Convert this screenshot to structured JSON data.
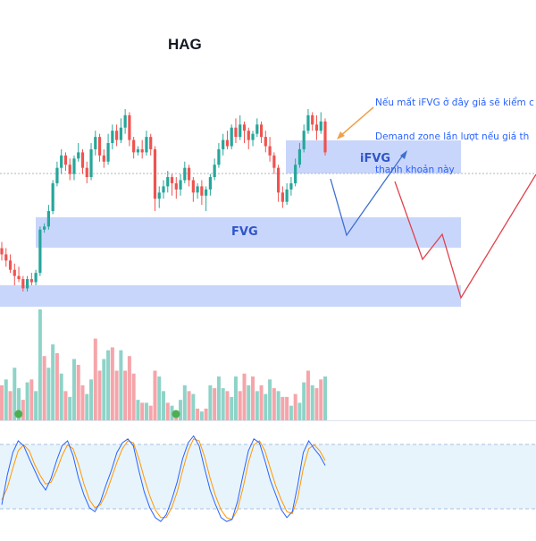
{
  "ticker": "HAG",
  "annotation": {
    "lines": [
      "Nếu mất iFVG ở đây giá sẽ kiểm c",
      "Demand zone lần lượt nếu giá th",
      "thanh khoản này"
    ]
  },
  "zones": [
    {
      "name": "iFVG",
      "label": "iFVG"
    },
    {
      "name": "FVG",
      "label": "FVG"
    },
    {
      "name": "demand-zone",
      "label": ""
    }
  ],
  "colors": {
    "up": "#26a69a",
    "down": "#ef5350",
    "vol_up": "#8fd3c8",
    "vol_down": "#f5a5aa",
    "zone": "#c9d6fb",
    "blue_path": "#3f6fcf",
    "red_path": "#e0424b",
    "oscillator_bg": "#e8f4fb",
    "osc_k": "#2962ff",
    "osc_d": "#ff9800",
    "annotation": "#2962ff",
    "arrow": "#f0a04b"
  },
  "chart_data": {
    "type": "candlestick",
    "title": "HAG",
    "price_scale_units": "relative (no axis printed)",
    "candles": [
      [
        40,
        38,
        42,
        36
      ],
      [
        38,
        36,
        40,
        34
      ],
      [
        36,
        33,
        38,
        32
      ],
      [
        33,
        31,
        35,
        28
      ],
      [
        31,
        30,
        34,
        29
      ],
      [
        30,
        27,
        31,
        26
      ],
      [
        27,
        30,
        31,
        26
      ],
      [
        30,
        29,
        32,
        28
      ],
      [
        29,
        32,
        33,
        28
      ],
      [
        32,
        46,
        47,
        31
      ],
      [
        46,
        47,
        48,
        45
      ],
      [
        47,
        52,
        54,
        46
      ],
      [
        52,
        61,
        62,
        51
      ],
      [
        61,
        66,
        68,
        60
      ],
      [
        66,
        70,
        72,
        64
      ],
      [
        70,
        67,
        71,
        65
      ],
      [
        67,
        64,
        69,
        62
      ],
      [
        64,
        69,
        70,
        62
      ],
      [
        69,
        71,
        74,
        68
      ],
      [
        71,
        66,
        72,
        64
      ],
      [
        66,
        63,
        68,
        61
      ],
      [
        63,
        72,
        74,
        62
      ],
      [
        72,
        76,
        78,
        70
      ],
      [
        76,
        70,
        77,
        68
      ],
      [
        70,
        68,
        72,
        66
      ],
      [
        68,
        74,
        77,
        67
      ],
      [
        74,
        78,
        80,
        72
      ],
      [
        78,
        75,
        80,
        73
      ],
      [
        75,
        79,
        82,
        74
      ],
      [
        79,
        83,
        85,
        77
      ],
      [
        83,
        75,
        84,
        73
      ],
      [
        75,
        71,
        76,
        69
      ],
      [
        71,
        72,
        73,
        70
      ],
      [
        72,
        71,
        75,
        69
      ],
      [
        71,
        76,
        78,
        70
      ],
      [
        76,
        72,
        77,
        70
      ],
      [
        72,
        56,
        73,
        52
      ],
      [
        56,
        58,
        60,
        53
      ],
      [
        58,
        60,
        62,
        56
      ],
      [
        60,
        63,
        65,
        58
      ],
      [
        63,
        61,
        64,
        57
      ],
      [
        61,
        59,
        63,
        56
      ],
      [
        59,
        62,
        64,
        57
      ],
      [
        62,
        66,
        68,
        61
      ],
      [
        66,
        62,
        67,
        60
      ],
      [
        62,
        58,
        63,
        55
      ],
      [
        58,
        60,
        61,
        56
      ],
      [
        60,
        57,
        62,
        54
      ],
      [
        57,
        59,
        60,
        52
      ],
      [
        59,
        63,
        64,
        57
      ],
      [
        63,
        67,
        69,
        62
      ],
      [
        67,
        72,
        74,
        66
      ],
      [
        72,
        75,
        77,
        70
      ],
      [
        75,
        73,
        78,
        72
      ],
      [
        73,
        79,
        80,
        72
      ],
      [
        79,
        76,
        82,
        74
      ],
      [
        76,
        80,
        83,
        75
      ],
      [
        80,
        78,
        81,
        74
      ],
      [
        78,
        75,
        79,
        72
      ],
      [
        75,
        77,
        78,
        73
      ],
      [
        77,
        80,
        82,
        76
      ],
      [
        80,
        76,
        81,
        74
      ],
      [
        76,
        73,
        78,
        71
      ],
      [
        73,
        70,
        76,
        68
      ],
      [
        70,
        66,
        71,
        64
      ],
      [
        66,
        58,
        67,
        55
      ],
      [
        58,
        55,
        60,
        53
      ],
      [
        55,
        59,
        61,
        54
      ],
      [
        59,
        61,
        63,
        57
      ],
      [
        61,
        67,
        69,
        60
      ],
      [
        67,
        72,
        74,
        66
      ],
      [
        72,
        78,
        80,
        71
      ],
      [
        78,
        83,
        85,
        77
      ],
      [
        83,
        80,
        84,
        78
      ],
      [
        80,
        78,
        83,
        75
      ],
      [
        78,
        81,
        84,
        77
      ],
      [
        81,
        71,
        82,
        70
      ]
    ],
    "volumes": [
      [
        12,
        0
      ],
      [
        14,
        1
      ],
      [
        10,
        0
      ],
      [
        18,
        1
      ],
      [
        11,
        1
      ],
      [
        7,
        0
      ],
      [
        13,
        1
      ],
      [
        14,
        0
      ],
      [
        10,
        1
      ],
      [
        38,
        1
      ],
      [
        22,
        0
      ],
      [
        18,
        1
      ],
      [
        26,
        1
      ],
      [
        23,
        0
      ],
      [
        16,
        1
      ],
      [
        10,
        0
      ],
      [
        8,
        1
      ],
      [
        21,
        1
      ],
      [
        19,
        0
      ],
      [
        12,
        0
      ],
      [
        9,
        1
      ],
      [
        14,
        1
      ],
      [
        28,
        0
      ],
      [
        17,
        0
      ],
      [
        21,
        1
      ],
      [
        24,
        1
      ],
      [
        25,
        0
      ],
      [
        17,
        0
      ],
      [
        24,
        1
      ],
      [
        17,
        0
      ],
      [
        22,
        0
      ],
      [
        16,
        0
      ],
      [
        7,
        1
      ],
      [
        6,
        0
      ],
      [
        6,
        1
      ],
      [
        5,
        0
      ],
      [
        17,
        0
      ],
      [
        15,
        1
      ],
      [
        10,
        1
      ],
      [
        6,
        0
      ],
      [
        5,
        1
      ],
      [
        3,
        0
      ],
      [
        7,
        1
      ],
      [
        12,
        1
      ],
      [
        10,
        0
      ],
      [
        9,
        1
      ],
      [
        4,
        0
      ],
      [
        3,
        1
      ],
      [
        4,
        0
      ],
      [
        12,
        1
      ],
      [
        11,
        0
      ],
      [
        15,
        1
      ],
      [
        11,
        1
      ],
      [
        10,
        0
      ],
      [
        8,
        1
      ],
      [
        15,
        1
      ],
      [
        10,
        0
      ],
      [
        16,
        0
      ],
      [
        12,
        1
      ],
      [
        15,
        0
      ],
      [
        10,
        1
      ],
      [
        12,
        0
      ],
      [
        9,
        1
      ],
      [
        14,
        1
      ],
      [
        11,
        0
      ],
      [
        10,
        1
      ],
      [
        8,
        0
      ],
      [
        8,
        0
      ],
      [
        5,
        1
      ],
      [
        9,
        0
      ],
      [
        6,
        1
      ],
      [
        13,
        1
      ],
      [
        17,
        0
      ],
      [
        12,
        1
      ],
      [
        11,
        0
      ],
      [
        14,
        0
      ],
      [
        15,
        1
      ]
    ],
    "volume_markers_at_candle": [
      1,
      38
    ],
    "oscillator": {
      "k": [
        25,
        55,
        78,
        90,
        85,
        72,
        60,
        48,
        40,
        52,
        70,
        85,
        90,
        75,
        52,
        35,
        22,
        18,
        28,
        45,
        60,
        78,
        88,
        92,
        85,
        60,
        38,
        22,
        12,
        8,
        15,
        30,
        48,
        72,
        88,
        95,
        85,
        62,
        40,
        25,
        12,
        8,
        10,
        28,
        55,
        80,
        92,
        88,
        70,
        50,
        35,
        20,
        12,
        18,
        45,
        78,
        90,
        82,
        75,
        65
      ],
      "d": [
        30,
        42,
        62,
        80,
        86,
        80,
        66,
        55,
        46,
        48,
        60,
        75,
        86,
        82,
        66,
        46,
        30,
        22,
        25,
        36,
        52,
        68,
        82,
        90,
        88,
        72,
        52,
        34,
        20,
        12,
        12,
        22,
        38,
        60,
        80,
        92,
        90,
        74,
        52,
        34,
        20,
        12,
        10,
        20,
        42,
        68,
        86,
        90,
        80,
        62,
        44,
        30,
        18,
        16,
        32,
        62,
        82,
        86,
        80,
        70
      ]
    }
  }
}
